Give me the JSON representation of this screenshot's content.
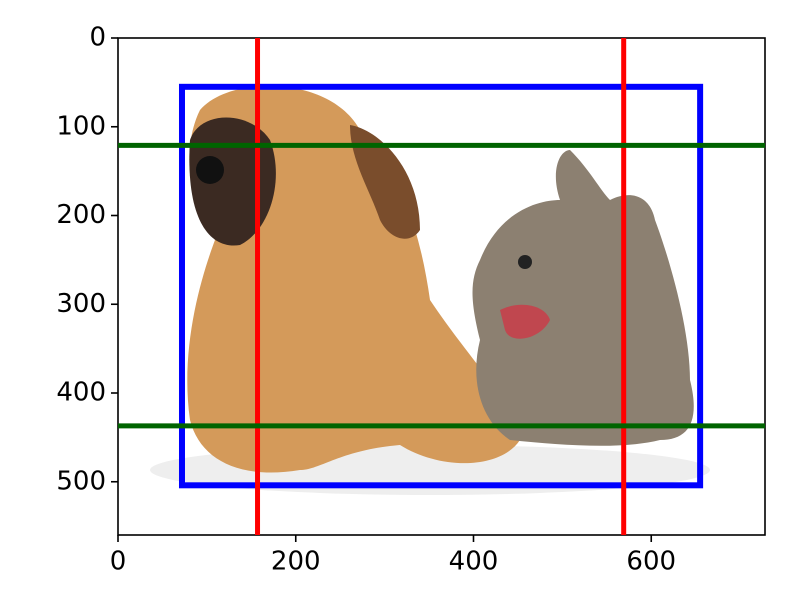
{
  "chart_data": {
    "type": "image",
    "xlim": [
      0,
      728
    ],
    "ylim": [
      560,
      0
    ],
    "xticks": [
      0,
      200,
      400,
      600
    ],
    "yticks": [
      0,
      100,
      200,
      300,
      400,
      500
    ],
    "box": {
      "xmin": 72,
      "ymin": 55,
      "xmax": 655,
      "ymax": 504,
      "color": "#0000ff"
    },
    "vlines": {
      "x": [
        157,
        569
      ],
      "color": "#ff0000"
    },
    "hlines": {
      "y": [
        121,
        437
      ],
      "color": "#006400"
    }
  }
}
